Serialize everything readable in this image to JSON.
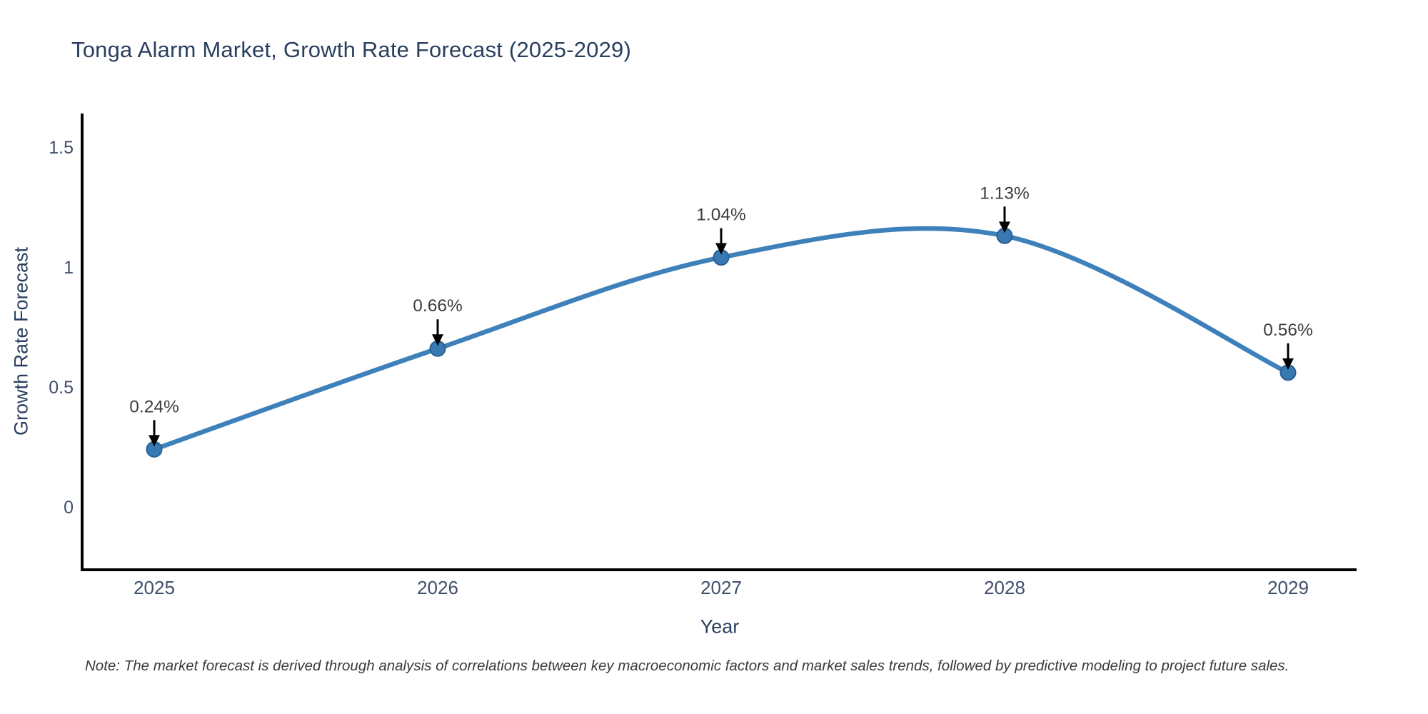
{
  "chart_data": {
    "type": "line",
    "title": "Tonga Alarm Market, Growth Rate Forecast (2025-2029)",
    "xlabel": "Year",
    "ylabel": "Growth Rate Forecast",
    "categories": [
      "2025",
      "2026",
      "2027",
      "2028",
      "2029"
    ],
    "series": [
      {
        "name": "Growth Rate Forecast",
        "values": [
          0.24,
          0.66,
          1.04,
          1.13,
          0.56
        ],
        "point_labels": [
          "0.24%",
          "0.66%",
          "1.04%",
          "1.13%",
          "0.56%"
        ]
      }
    ],
    "yticks": [
      0,
      0.5,
      1,
      1.5
    ],
    "ylim": [
      -0.26,
      1.63
    ],
    "grid": false,
    "legend": "none",
    "curve": "spline",
    "colors": {
      "line": "#3e80b9",
      "marker_fill": "#3779b3",
      "marker_edge": "#2b5f93",
      "axis_line": "#000000",
      "tick_text": "#3f4f6b",
      "title_text": "#2a3f5f",
      "annotation_text": "#3d3d3d",
      "annotation_arrow": "#000000"
    }
  },
  "note": {
    "text": "Note: The market forecast is derived through analysis of correlations between key macroeconomic factors and market sales trends, followed by predictive modeling to project future sales."
  }
}
